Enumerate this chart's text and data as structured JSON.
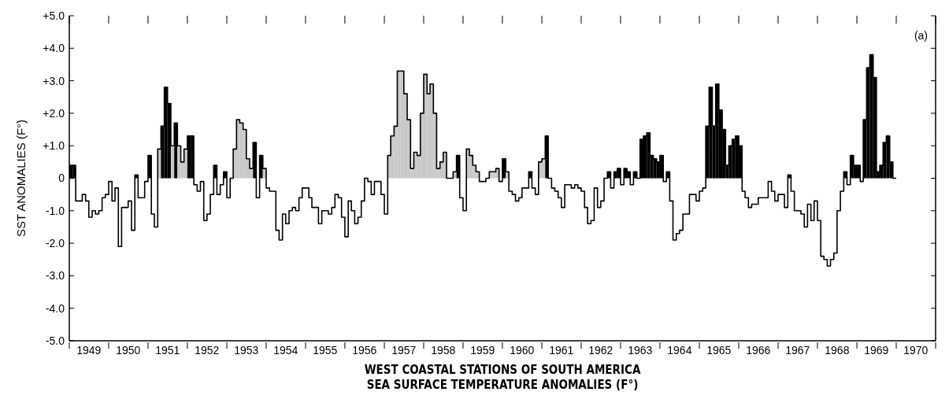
{
  "chart_data": {
    "type": "step",
    "title": "WEST COASTAL STATIONS OF SOUTH AMERICA",
    "subtitle": "SEA SURFACE TEMPERATURE ANOMALIES (F°)",
    "ylabel": "SST ANOMALIES (F°)",
    "annotations": [
      "(a)"
    ],
    "x": [
      "1949-01",
      "1949-02",
      "1949-03",
      "1949-04",
      "1949-05",
      "1949-06",
      "1949-07",
      "1949-08",
      "1949-09",
      "1949-10",
      "1949-11",
      "1949-12",
      "1950-01",
      "1950-02",
      "1950-03",
      "1950-04",
      "1950-05",
      "1950-06",
      "1950-07",
      "1950-08",
      "1950-09",
      "1950-10",
      "1950-11",
      "1950-12",
      "1951-01",
      "1951-02",
      "1951-03",
      "1951-04",
      "1951-05",
      "1951-06",
      "1951-07",
      "1951-08",
      "1951-09",
      "1951-10",
      "1951-11",
      "1951-12",
      "1952-01",
      "1952-02",
      "1952-03",
      "1952-04",
      "1952-05",
      "1952-06",
      "1952-07",
      "1952-08",
      "1952-09",
      "1952-10",
      "1952-11",
      "1952-12",
      "1953-01",
      "1953-02",
      "1953-03",
      "1953-04",
      "1953-05",
      "1953-06",
      "1953-07",
      "1953-08",
      "1953-09",
      "1953-10",
      "1953-11",
      "1953-12",
      "1954-01",
      "1954-02",
      "1954-03",
      "1954-04",
      "1954-05",
      "1954-06",
      "1954-07",
      "1954-08",
      "1954-09",
      "1954-10",
      "1954-11",
      "1954-12",
      "1955-01",
      "1955-02",
      "1955-03",
      "1955-04",
      "1955-05",
      "1955-06",
      "1955-07",
      "1955-08",
      "1955-09",
      "1955-10",
      "1955-11",
      "1955-12",
      "1956-01",
      "1956-02",
      "1956-03",
      "1956-04",
      "1956-05",
      "1956-06",
      "1956-07",
      "1956-08",
      "1956-09",
      "1956-10",
      "1956-11",
      "1956-12",
      "1957-01",
      "1957-02",
      "1957-03",
      "1957-04",
      "1957-05",
      "1957-06",
      "1957-07",
      "1957-08",
      "1957-09",
      "1957-10",
      "1957-11",
      "1957-12",
      "1958-01",
      "1958-02",
      "1958-03",
      "1958-04",
      "1958-05",
      "1958-06",
      "1958-07",
      "1958-08",
      "1958-09",
      "1958-10",
      "1958-11",
      "1958-12",
      "1959-01",
      "1959-02",
      "1959-03",
      "1959-04",
      "1959-05",
      "1959-06",
      "1959-07",
      "1959-08",
      "1959-09",
      "1959-10",
      "1959-11",
      "1959-12",
      "1960-01",
      "1960-02",
      "1960-03",
      "1960-04",
      "1960-05",
      "1960-06",
      "1960-07",
      "1960-08",
      "1960-09",
      "1960-10",
      "1960-11",
      "1960-12",
      "1961-01",
      "1961-02",
      "1961-03",
      "1961-04",
      "1961-05",
      "1961-06",
      "1961-07",
      "1961-08",
      "1961-09",
      "1961-10",
      "1961-11",
      "1961-12",
      "1962-01",
      "1962-02",
      "1962-03",
      "1962-04",
      "1962-05",
      "1962-06",
      "1962-07",
      "1962-08",
      "1962-09",
      "1962-10",
      "1962-11",
      "1962-12",
      "1963-01",
      "1963-02",
      "1963-03",
      "1963-04",
      "1963-05",
      "1963-06",
      "1963-07",
      "1963-08",
      "1963-09",
      "1963-10",
      "1963-11",
      "1963-12",
      "1964-01",
      "1964-02",
      "1964-03",
      "1964-04",
      "1964-05",
      "1964-06",
      "1964-07",
      "1964-08",
      "1964-09",
      "1964-10",
      "1964-11",
      "1964-12",
      "1965-01",
      "1965-02",
      "1965-03",
      "1965-04",
      "1965-05",
      "1965-06",
      "1965-07",
      "1965-08",
      "1965-09",
      "1965-10",
      "1965-11",
      "1965-12",
      "1966-01",
      "1966-02",
      "1966-03",
      "1966-04",
      "1966-05",
      "1966-06",
      "1966-07",
      "1966-08",
      "1966-09",
      "1966-10",
      "1966-11",
      "1966-12",
      "1967-01",
      "1967-02",
      "1967-03",
      "1967-04",
      "1967-05",
      "1967-06",
      "1967-07",
      "1967-08",
      "1967-09",
      "1967-10",
      "1967-11",
      "1967-12",
      "1968-01",
      "1968-02",
      "1968-03",
      "1968-04",
      "1968-05",
      "1968-06",
      "1968-07",
      "1968-08",
      "1968-09",
      "1968-10",
      "1968-11",
      "1968-12",
      "1969-01",
      "1969-02",
      "1969-03",
      "1969-04",
      "1969-05",
      "1969-06",
      "1969-07",
      "1969-08",
      "1969-09",
      "1969-10",
      "1969-11",
      "1969-12"
    ],
    "series": [
      {
        "type": "bar",
        "values": [
          0.4,
          0.4,
          null,
          null,
          null,
          null,
          null,
          null,
          null,
          null,
          null,
          null,
          null,
          null,
          null,
          null,
          null,
          null,
          null,
          null,
          0.1,
          null,
          null,
          null,
          0.7,
          null,
          null,
          0.9,
          1.6,
          2.8,
          2.3,
          1.0,
          1.7,
          1.0,
          0.5,
          0.9,
          1.3,
          1.3,
          null,
          null,
          null,
          null,
          null,
          null,
          0.4,
          null,
          null,
          0.2,
          null,
          null,
          0.9,
          1.8,
          1.7,
          1.5,
          0.6,
          0.3,
          1.1,
          null,
          0.7,
          0.3,
          null,
          null,
          null,
          null,
          null,
          null,
          null,
          null,
          null,
          null,
          null,
          null,
          null,
          null,
          null,
          null,
          null,
          null,
          null,
          null,
          null,
          null,
          null,
          null,
          null,
          null,
          null,
          null,
          null,
          null,
          null,
          null,
          null,
          null,
          null,
          null,
          null,
          0.7,
          1.3,
          1.6,
          3.3,
          3.3,
          2.6,
          1.8,
          0.3,
          0.8,
          0.7,
          2.0,
          3.2,
          2.6,
          2.9,
          2.0,
          0.3,
          0.5,
          0.8,
          null,
          null,
          0.2,
          0.7,
          null,
          null,
          0.9,
          0.7,
          0.4,
          0.2,
          null,
          null,
          null,
          0.2,
          0.2,
          0.3,
          null,
          0.6,
          0.2,
          null,
          null,
          null,
          null,
          null,
          null,
          0.2,
          null,
          null,
          0.5,
          0.6,
          1.3,
          null,
          null,
          null,
          null,
          null,
          null,
          null,
          null,
          null,
          null,
          null,
          null,
          null,
          null,
          null,
          null,
          null,
          null,
          0.2,
          null,
          0.2,
          0.3,
          null,
          0.3,
          0.2,
          null,
          0.2,
          null,
          1.2,
          1.3,
          1.4,
          0.7,
          0.6,
          0.5,
          0.7,
          null,
          0.2,
          null,
          null,
          null,
          null,
          null,
          null,
          null,
          null,
          null,
          null,
          null,
          1.6,
          2.8,
          1.6,
          2.9,
          2.1,
          1.5,
          0.4,
          1.0,
          1.2,
          1.3,
          1.0,
          null,
          null,
          null,
          null,
          null,
          null,
          null,
          null,
          null,
          null,
          null,
          null,
          null,
          null,
          0.1,
          null,
          null,
          null,
          null,
          null,
          null,
          null,
          null,
          null,
          null,
          null,
          null,
          null,
          null,
          null,
          null,
          0.2,
          null,
          0.7,
          0.4,
          0.4,
          null,
          1.8,
          3.4,
          3.8,
          3.1,
          0.2,
          0.4,
          1.1,
          1.3,
          0.5,
          null
        ],
        "colors": [
          "#000000",
          "#000000",
          null,
          null,
          null,
          null,
          null,
          null,
          null,
          null,
          null,
          null,
          null,
          null,
          null,
          null,
          null,
          null,
          null,
          null,
          "#000000",
          null,
          null,
          null,
          "#000000",
          null,
          null,
          "#c8c8c8",
          "#000000",
          "#000000",
          "#000000",
          "#c8c8c8",
          "#000000",
          "#c8c8c8",
          "#c8c8c8",
          "#c8c8c8",
          "#000000",
          "#000000",
          null,
          null,
          null,
          null,
          null,
          null,
          "#000000",
          null,
          null,
          "#000000",
          null,
          null,
          "#c8c8c8",
          "#c8c8c8",
          "#c8c8c8",
          "#c8c8c8",
          "#c8c8c8",
          "#c8c8c8",
          "#000000",
          null,
          "#000000",
          "#c8c8c8",
          null,
          null,
          null,
          null,
          null,
          null,
          null,
          null,
          null,
          null,
          null,
          null,
          null,
          null,
          null,
          null,
          null,
          null,
          null,
          null,
          null,
          null,
          null,
          null,
          null,
          null,
          null,
          null,
          null,
          null,
          null,
          null,
          null,
          null,
          null,
          null,
          null,
          "#c8c8c8",
          "#c8c8c8",
          "#c8c8c8",
          "#c8c8c8",
          "#c8c8c8",
          "#c8c8c8",
          "#c8c8c8",
          "#c8c8c8",
          "#c8c8c8",
          "#c8c8c8",
          "#c8c8c8",
          "#c8c8c8",
          "#c8c8c8",
          "#c8c8c8",
          "#c8c8c8",
          "#c8c8c8",
          "#c8c8c8",
          "#c8c8c8",
          null,
          null,
          "#c8c8c8",
          "#000000",
          null,
          null,
          "#c8c8c8",
          "#c8c8c8",
          "#c8c8c8",
          "#c8c8c8",
          null,
          null,
          null,
          "#c8c8c8",
          "#c8c8c8",
          "#c8c8c8",
          null,
          "#000000",
          "#c8c8c8",
          null,
          null,
          null,
          null,
          null,
          null,
          "#000000",
          null,
          null,
          "#c8c8c8",
          "#c8c8c8",
          "#000000",
          null,
          null,
          null,
          null,
          null,
          null,
          null,
          null,
          null,
          null,
          null,
          null,
          null,
          null,
          null,
          null,
          null,
          null,
          "#000000",
          null,
          "#000000",
          "#000000",
          null,
          "#000000",
          "#000000",
          null,
          "#000000",
          null,
          "#000000",
          "#000000",
          "#000000",
          "#000000",
          "#000000",
          "#000000",
          "#000000",
          null,
          "#000000",
          null,
          null,
          null,
          null,
          null,
          null,
          null,
          null,
          null,
          null,
          null,
          "#000000",
          "#000000",
          "#000000",
          "#000000",
          "#000000",
          "#000000",
          "#000000",
          "#000000",
          "#000000",
          "#000000",
          "#000000",
          null,
          null,
          null,
          null,
          null,
          null,
          null,
          null,
          null,
          null,
          null,
          null,
          null,
          null,
          "#000000",
          null,
          null,
          null,
          null,
          null,
          null,
          null,
          null,
          null,
          null,
          null,
          null,
          null,
          null,
          null,
          null,
          "#000000",
          null,
          "#000000",
          "#000000",
          "#000000",
          null,
          "#000000",
          "#000000",
          "#000000",
          "#000000",
          "#000000",
          "#000000",
          "#000000",
          "#000000",
          "#000000",
          null
        ]
      },
      {
        "color": "#000000",
        "values": [
          0.4,
          0.4,
          -0.7,
          -0.7,
          -0.5,
          -0.7,
          -1.2,
          -1.0,
          -1.1,
          -1.0,
          -0.6,
          -0.5,
          -0.1,
          -0.7,
          -0.3,
          -2.1,
          -0.9,
          -0.9,
          -0.7,
          -1.6,
          0.1,
          -0.6,
          -0.6,
          -0.1,
          0.7,
          -1.1,
          -1.5,
          0.9,
          1.6,
          2.8,
          2.3,
          1.0,
          1.7,
          1.0,
          0.5,
          0.9,
          1.3,
          1.3,
          -0.2,
          -0.4,
          -0.1,
          -1.3,
          -1.1,
          -0.5,
          0.4,
          -0.5,
          -0.2,
          0.2,
          -0.6,
          0.0,
          0.9,
          1.8,
          1.7,
          1.5,
          0.6,
          0.3,
          1.1,
          -0.6,
          0.7,
          0.3,
          -0.3,
          -0.4,
          -0.4,
          -1.6,
          -1.9,
          -1.1,
          -1.4,
          -1.0,
          -0.9,
          -1.0,
          -0.6,
          -0.3,
          -0.3,
          -0.6,
          -0.9,
          -0.9,
          -1.4,
          -1.0,
          -1.0,
          -1.1,
          -0.9,
          -0.5,
          -0.6,
          -1.2,
          -1.8,
          -0.7,
          -1.0,
          -1.4,
          -1.2,
          -0.7,
          0.0,
          -0.1,
          -0.5,
          -0.1,
          -0.1,
          -0.5,
          -1.1,
          0.7,
          1.3,
          1.6,
          3.3,
          3.3,
          2.6,
          1.8,
          0.3,
          0.8,
          0.7,
          2.0,
          3.2,
          2.6,
          2.9,
          2.0,
          0.3,
          0.5,
          0.8,
          0.0,
          0.0,
          0.2,
          0.7,
          -0.6,
          -1.0,
          0.9,
          0.7,
          0.4,
          0.2,
          -0.1,
          -0.1,
          0.0,
          0.2,
          0.2,
          0.3,
          -0.1,
          0.6,
          0.2,
          -0.4,
          -0.5,
          -0.7,
          -0.6,
          -0.3,
          -0.3,
          0.2,
          -0.3,
          -0.5,
          0.5,
          0.6,
          1.3,
          0.0,
          -0.3,
          -0.4,
          -0.6,
          -0.9,
          -0.2,
          -0.2,
          -0.3,
          -0.2,
          -0.3,
          -0.4,
          -0.9,
          -1.4,
          -1.3,
          -0.3,
          -0.9,
          -0.7,
          0.0,
          0.2,
          -0.3,
          0.2,
          0.3,
          -0.2,
          0.3,
          0.2,
          -0.2,
          0.2,
          0.0,
          1.2,
          1.3,
          1.4,
          0.7,
          0.6,
          0.5,
          0.7,
          -0.1,
          0.2,
          -0.7,
          -1.9,
          -1.7,
          -1.6,
          -1.1,
          -1.1,
          -0.5,
          -0.5,
          -0.7,
          -0.4,
          -0.3,
          1.6,
          2.8,
          1.6,
          2.9,
          2.1,
          1.5,
          0.4,
          1.0,
          1.2,
          1.3,
          1.0,
          -0.4,
          -0.6,
          -0.9,
          -0.8,
          -0.8,
          -0.6,
          -0.6,
          -0.6,
          -0.1,
          -0.4,
          -0.7,
          -0.5,
          -0.5,
          -0.9,
          0.1,
          -0.4,
          -1.0,
          -1.0,
          -1.1,
          -1.5,
          -0.8,
          -1.3,
          -0.7,
          -1.3,
          -2.4,
          -2.5,
          -2.7,
          -2.5,
          -2.3,
          -1.0,
          -0.4,
          0.2,
          -0.2,
          0.7,
          0.4,
          0.4,
          -0.1,
          1.8,
          3.4,
          3.8,
          3.1,
          0.2,
          0.4,
          1.1,
          1.3,
          0.5,
          0.0
        ]
      }
    ],
    "xlim": [
      "1949-01",
      "1971-01"
    ],
    "xticks": [
      {
        "value": "1949-01",
        "label": null
      },
      {
        "value": "1949-07",
        "label": "1949"
      },
      {
        "value": "1950-01",
        "label": null
      },
      {
        "value": "1950-07",
        "label": "1950"
      },
      {
        "value": "1951-01",
        "label": null
      },
      {
        "value": "1951-07",
        "label": "1951"
      },
      {
        "value": "1952-01",
        "label": null
      },
      {
        "value": "1952-07",
        "label": "1952"
      },
      {
        "value": "1953-01",
        "label": null
      },
      {
        "value": "1953-07",
        "label": "1953"
      },
      {
        "value": "1954-01",
        "label": null
      },
      {
        "value": "1954-07",
        "label": "1954"
      },
      {
        "value": "1955-01",
        "label": null
      },
      {
        "value": "1955-07",
        "label": "1955"
      },
      {
        "value": "1956-01",
        "label": null
      },
      {
        "value": "1956-07",
        "label": "1956"
      },
      {
        "value": "1957-01",
        "label": null
      },
      {
        "value": "1957-07",
        "label": "1957"
      },
      {
        "value": "1958-01",
        "label": null
      },
      {
        "value": "1958-07",
        "label": "1958"
      },
      {
        "value": "1959-01",
        "label": null
      },
      {
        "value": "1959-07",
        "label": "1959"
      },
      {
        "value": "1960-01",
        "label": null
      },
      {
        "value": "1960-07",
        "label": "1960"
      },
      {
        "value": "1961-01",
        "label": null
      },
      {
        "value": "1961-07",
        "label": "1961"
      },
      {
        "value": "1962-01",
        "label": null
      },
      {
        "value": "1962-07",
        "label": "1962"
      },
      {
        "value": "1963-01",
        "label": null
      },
      {
        "value": "1963-07",
        "label": "1963"
      },
      {
        "value": "1964-01",
        "label": null
      },
      {
        "value": "1964-07",
        "label": "1964"
      },
      {
        "value": "1965-01",
        "label": null
      },
      {
        "value": "1965-07",
        "label": "1965"
      },
      {
        "value": "1966-01",
        "label": null
      },
      {
        "value": "1966-07",
        "label": "1966"
      },
      {
        "value": "1967-01",
        "label": null
      },
      {
        "value": "1967-07",
        "label": "1967"
      },
      {
        "value": "1968-01",
        "label": null
      },
      {
        "value": "1968-07",
        "label": "1968"
      },
      {
        "value": "1969-01",
        "label": null
      },
      {
        "value": "1969-07",
        "label": "1969"
      },
      {
        "value": "1970-01",
        "label": null
      },
      {
        "value": "1970-07",
        "label": "1970"
      },
      {
        "value": "1971-01",
        "label": null
      }
    ],
    "ylim": [
      -5,
      5
    ],
    "yticks": [
      {
        "value": 5,
        "label": "+5.0"
      },
      {
        "value": 4,
        "label": "+4.0"
      },
      {
        "value": 3,
        "label": "+3.0"
      },
      {
        "value": 2,
        "label": "+2.0"
      },
      {
        "value": 1,
        "label": "+1.0"
      },
      0,
      {
        "value": -1,
        "label": "-1.0"
      },
      {
        "value": -2,
        "label": "-2.0"
      },
      {
        "value": -3,
        "label": "-3.0"
      },
      {
        "value": -4,
        "label": "-4.0"
      },
      {
        "value": -5,
        "label": "-5.0"
      }
    ],
    "grid": false
  }
}
